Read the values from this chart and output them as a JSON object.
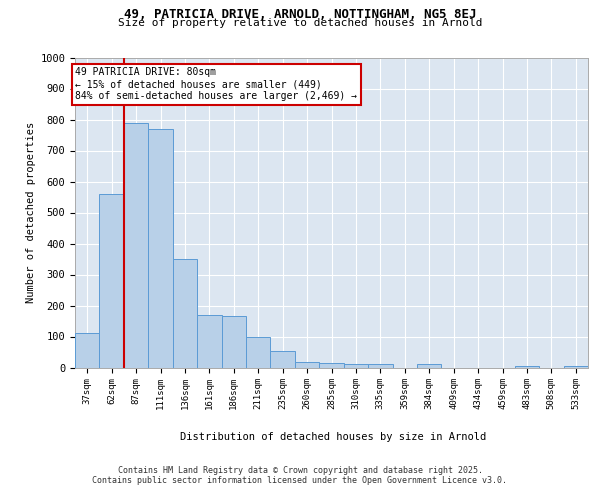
{
  "title_line1": "49, PATRICIA DRIVE, ARNOLD, NOTTINGHAM, NG5 8EJ",
  "title_line2": "Size of property relative to detached houses in Arnold",
  "xlabel": "Distribution of detached houses by size in Arnold",
  "ylabel": "Number of detached properties",
  "categories": [
    "37sqm",
    "62sqm",
    "87sqm",
    "111sqm",
    "136sqm",
    "161sqm",
    "186sqm",
    "211sqm",
    "235sqm",
    "260sqm",
    "285sqm",
    "310sqm",
    "335sqm",
    "359sqm",
    "384sqm",
    "409sqm",
    "434sqm",
    "459sqm",
    "483sqm",
    "508sqm",
    "533sqm"
  ],
  "values": [
    112,
    560,
    790,
    770,
    350,
    168,
    165,
    98,
    52,
    18,
    13,
    10,
    10,
    0,
    10,
    0,
    0,
    0,
    5,
    0,
    5
  ],
  "bar_color": "#b8d0e8",
  "bar_edge_color": "#5b9bd5",
  "bg_color": "#dce6f1",
  "vline_pos": 1.5,
  "vline_color": "#cc0000",
  "annotation_title": "49 PATRICIA DRIVE: 80sqm",
  "annotation_line1": "← 15% of detached houses are smaller (449)",
  "annotation_line2": "84% of semi-detached houses are larger (2,469) →",
  "ann_box_color": "#cc0000",
  "ylim": [
    0,
    1000
  ],
  "yticks": [
    0,
    100,
    200,
    300,
    400,
    500,
    600,
    700,
    800,
    900,
    1000
  ],
  "footer_line1": "Contains HM Land Registry data © Crown copyright and database right 2025.",
  "footer_line2": "Contains public sector information licensed under the Open Government Licence v3.0."
}
